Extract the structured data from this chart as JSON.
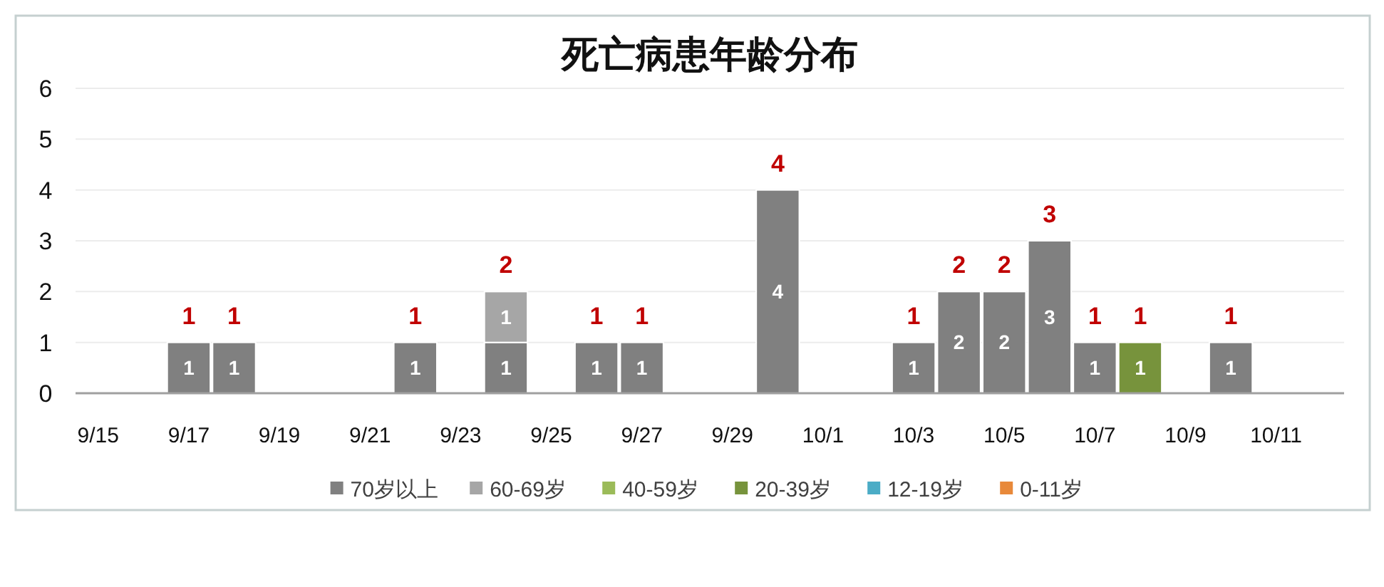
{
  "chart_data": {
    "type": "bar",
    "title": "死亡病患年龄分布",
    "categories": [
      "9/15",
      null,
      "9/17",
      null,
      "9/19",
      null,
      "9/21",
      null,
      "9/23",
      null,
      "9/25",
      null,
      "9/27",
      null,
      "9/29",
      null,
      "10/1",
      null,
      "10/3",
      null,
      "10/5",
      null,
      "10/7",
      null,
      "10/9",
      null,
      "10/11",
      null
    ],
    "series": [
      {
        "name": "70岁以上",
        "color": "#808080",
        "values": [
          null,
          null,
          1,
          1,
          null,
          null,
          null,
          1,
          null,
          1,
          null,
          1,
          1,
          null,
          null,
          4,
          null,
          null,
          1,
          2,
          2,
          3,
          1,
          null,
          null,
          1,
          null,
          null
        ]
      },
      {
        "name": "60-69岁",
        "color": "#a6a6a6",
        "values": [
          null,
          null,
          null,
          null,
          null,
          null,
          null,
          null,
          null,
          1,
          null,
          null,
          null,
          null,
          null,
          null,
          null,
          null,
          null,
          null,
          null,
          null,
          null,
          null,
          null,
          null,
          null,
          null
        ]
      },
      {
        "name": "40-59岁",
        "color": "#9bbb59",
        "values": [
          null,
          null,
          null,
          null,
          null,
          null,
          null,
          null,
          null,
          null,
          null,
          null,
          null,
          null,
          null,
          null,
          null,
          null,
          null,
          null,
          null,
          null,
          null,
          null,
          null,
          null,
          null,
          null
        ]
      },
      {
        "name": "20-39岁",
        "color": "#77933c",
        "values": [
          null,
          null,
          null,
          null,
          null,
          null,
          null,
          null,
          null,
          null,
          null,
          null,
          null,
          null,
          null,
          null,
          null,
          null,
          null,
          null,
          null,
          null,
          null,
          1,
          null,
          null,
          null,
          null
        ]
      },
      {
        "name": "12-19岁",
        "color": "#4bacc6",
        "values": [
          null,
          null,
          null,
          null,
          null,
          null,
          null,
          null,
          null,
          null,
          null,
          null,
          null,
          null,
          null,
          null,
          null,
          null,
          null,
          null,
          null,
          null,
          null,
          null,
          null,
          null,
          null,
          null
        ]
      },
      {
        "name": "0-11岁",
        "color": "#e8893a",
        "values": [
          null,
          null,
          null,
          null,
          null,
          null,
          null,
          null,
          null,
          null,
          null,
          null,
          null,
          null,
          null,
          null,
          null,
          null,
          null,
          null,
          null,
          null,
          null,
          null,
          null,
          null,
          null,
          null
        ]
      }
    ],
    "stacked": true,
    "data_labels": true,
    "totals": [
      null,
      null,
      "1",
      "1",
      null,
      null,
      null,
      "1",
      null,
      "2",
      null,
      "1",
      "1",
      null,
      null,
      "4",
      null,
      null,
      "1",
      "2",
      "2",
      "3",
      "1",
      "1",
      null,
      "1",
      null,
      null
    ],
    "ylim": [
      0,
      6
    ],
    "yticks": [
      0,
      1,
      2,
      3,
      4,
      5,
      6
    ],
    "grid": "y",
    "legend": "bottom"
  }
}
